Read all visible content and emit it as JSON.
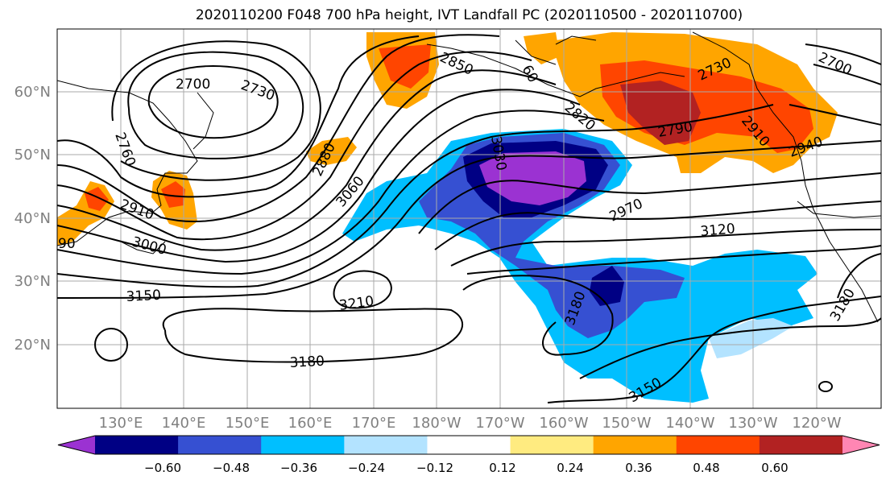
{
  "title": "2020110200 F048 700 hPa height, IVT Landfall PC (2020110500 - 2020110700)",
  "lat_labels": [
    "60°N",
    "50°N",
    "40°N",
    "30°N",
    "20°N"
  ],
  "lon_labels": [
    "130°E",
    "140°E",
    "150°E",
    "160°E",
    "170°E",
    "180°W",
    "170°W",
    "160°W",
    "150°W",
    "140°W",
    "130°W",
    "120°W"
  ],
  "contour_labels": [
    "2700",
    "2730",
    "2760",
    "2910",
    "3000",
    "2880",
    "3060",
    "3030",
    "2850",
    "2820",
    "2790",
    "2730",
    "2700",
    "2940",
    "2970",
    "3120",
    "3150",
    "3210",
    "3180",
    "3180",
    "3150",
    "3180",
    "2910",
    "60",
    "90"
  ],
  "colorbar": {
    "colors": [
      "#9b32d2",
      "#000084",
      "#3650d2",
      "#00bfff",
      "#b3e3ff",
      "#ffffff",
      "#ffeb80",
      "#ffa500",
      "#ff4500",
      "#b22222",
      "#ff86b3"
    ],
    "tick_labels": [
      "−0.60",
      "−0.48",
      "−0.36",
      "−0.24",
      "−0.12",
      "0.12",
      "0.24",
      "0.36",
      "0.48",
      "0.60"
    ]
  }
}
